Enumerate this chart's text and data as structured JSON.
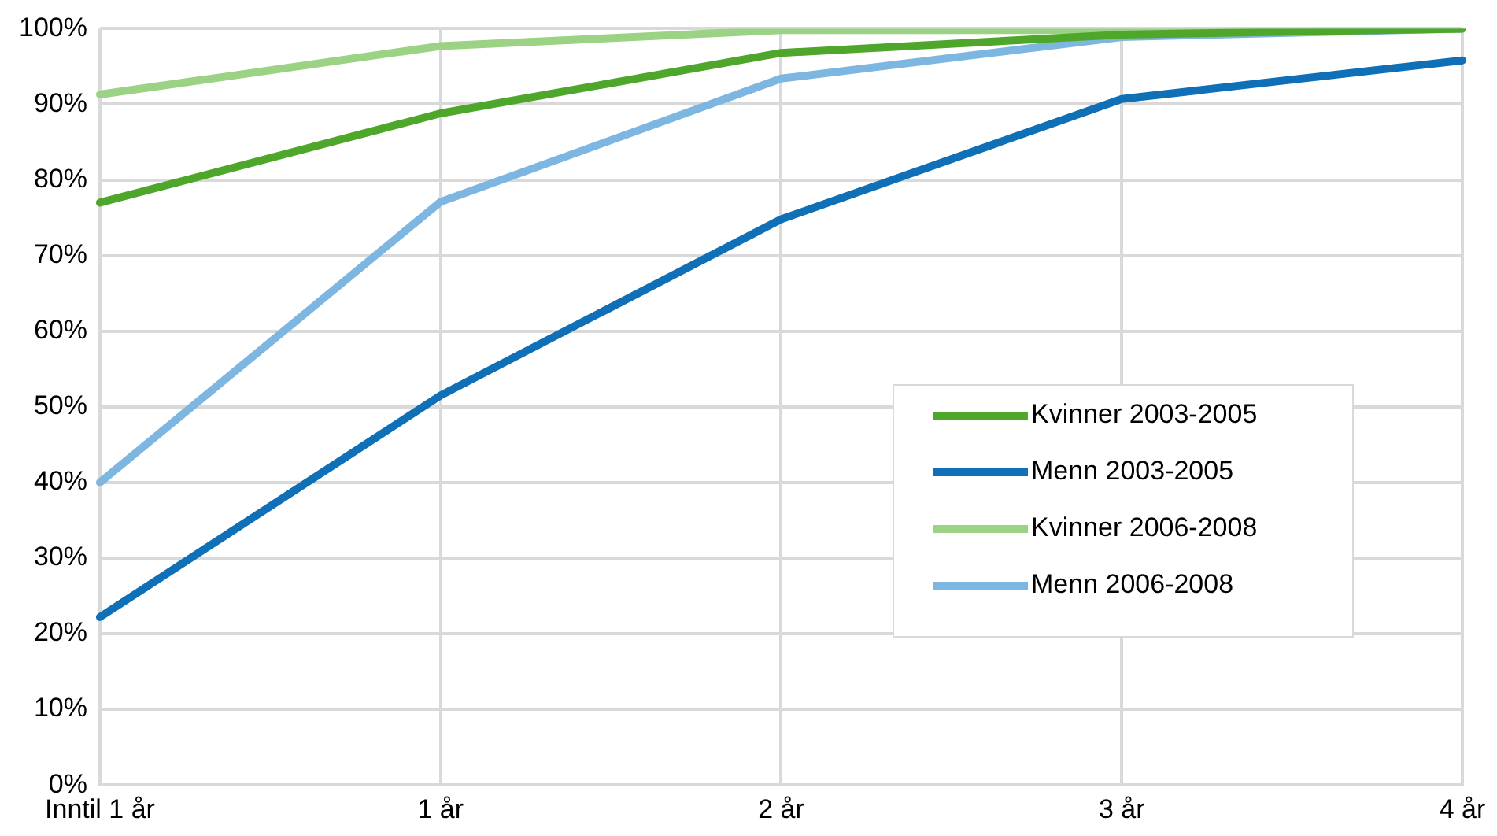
{
  "chart_data": {
    "type": "line",
    "categories": [
      "Inntil 1 år",
      "1 år",
      "2 år",
      "3 år",
      "4 år"
    ],
    "series": [
      {
        "name": "Kvinner 2003-2005",
        "color": "#4ea72a",
        "values": [
          77,
          88.8,
          96.8,
          99.2,
          100
        ]
      },
      {
        "name": "Menn 2003-2005",
        "color": "#0f70b7",
        "values": [
          22.2,
          51.5,
          74.8,
          90.7,
          95.8
        ]
      },
      {
        "name": "Kvinner 2006-2008",
        "color": "#9bd283",
        "values": [
          91.3,
          97.7,
          99.8,
          99.8,
          100
        ]
      },
      {
        "name": "Menn 2006-2008",
        "color": "#7db6e0",
        "values": [
          40,
          77.1,
          93.4,
          98.9,
          100
        ]
      }
    ],
    "ylim": [
      0,
      100
    ],
    "yticks": [
      {
        "value": 0,
        "label": "0%"
      },
      {
        "value": 10,
        "label": "10%"
      },
      {
        "value": 20,
        "label": "20%"
      },
      {
        "value": 30,
        "label": "30%"
      },
      {
        "value": 40,
        "label": "40%"
      },
      {
        "value": 50,
        "label": "50%"
      },
      {
        "value": 60,
        "label": "60%"
      },
      {
        "value": 70,
        "label": "70%"
      },
      {
        "value": 80,
        "label": "80%"
      },
      {
        "value": 90,
        "label": "90%"
      },
      {
        "value": 100,
        "label": "100%"
      }
    ],
    "grid": true,
    "legend": "right",
    "marker": "none",
    "line_style": "solid"
  }
}
